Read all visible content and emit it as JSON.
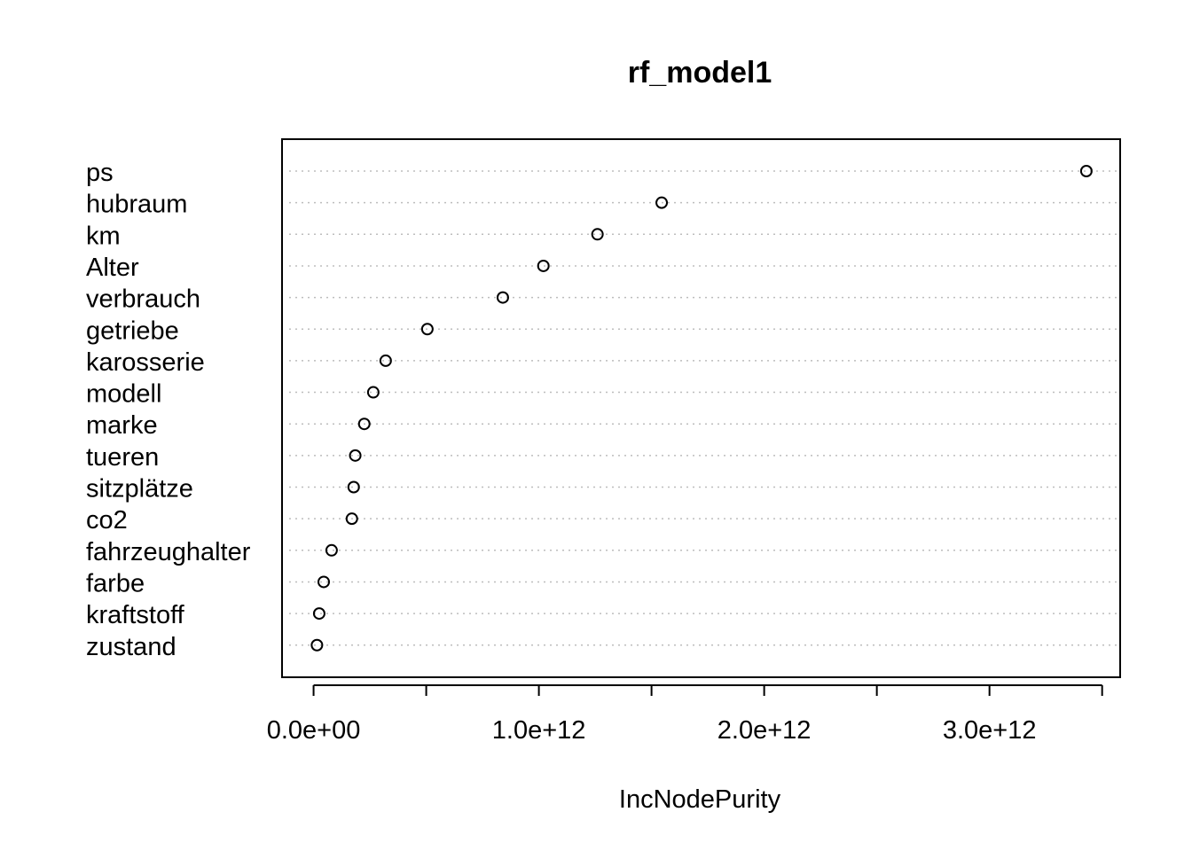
{
  "chart_data": {
    "type": "scatter",
    "title": "rf_model1",
    "xlabel": "IncNodePurity",
    "ylabel": "",
    "xlim": [
      -140000000000,
      3580000000000
    ],
    "xticks": [
      0,
      500000000000,
      1000000000000,
      1500000000000,
      2000000000000,
      2500000000000,
      3000000000000,
      3500000000000
    ],
    "xtick_labels": [
      {
        "value": 0,
        "label": "0.0e+00"
      },
      {
        "value": 1000000000000,
        "label": "1.0e+12"
      },
      {
        "value": 2000000000000,
        "label": "2.0e+12"
      },
      {
        "value": 3000000000000,
        "label": "3.0e+12"
      }
    ],
    "categories": [
      "ps",
      "hubraum",
      "km",
      "Alter",
      "verbrauch",
      "getriebe",
      "karosserie",
      "modell",
      "marke",
      "tueren",
      "sitzplätze",
      "co2",
      "fahrzeughalter",
      "farbe",
      "kraftstoff",
      "zustand"
    ],
    "values": [
      3430000000000,
      1545000000000,
      1260000000000,
      1020000000000,
      840000000000,
      505000000000,
      320000000000,
      265000000000,
      225000000000,
      185000000000,
      178000000000,
      170000000000,
      80000000000,
      45000000000,
      25000000000,
      15000000000
    ],
    "grid": "horizontal dotted",
    "marker": "open circle"
  }
}
